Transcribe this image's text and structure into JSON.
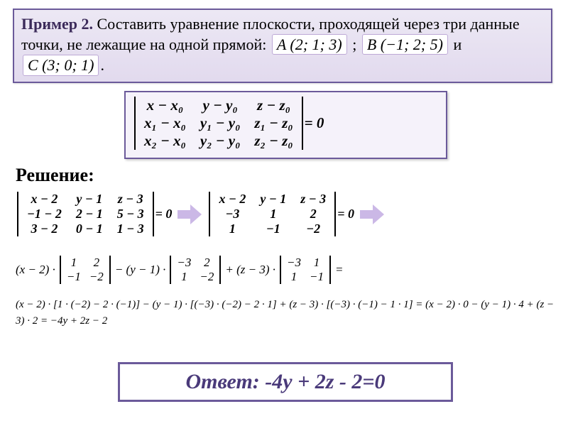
{
  "problem": {
    "prefix_bold": "Пример 2.",
    "text_part1": " Составить уравнение плоскости, проходящей через три данные точки, не лежащие на одной прямой: ",
    "pointA": "A (2; 1; 3)",
    "sep1": ";",
    "pointB": "B (−1; 2; 5)",
    "sep2": "и",
    "pointC": "C (3; 0; 1)",
    "end": "."
  },
  "formula": {
    "r1c1": "x − x₀",
    "r1c2": "y − y₀",
    "r1c3": "z − z₀",
    "r2c1": "x₁ − x₀",
    "r2c2": "y₁ − y₀",
    "r2c3": "z₁ − z₀",
    "r3c1": "x₂ − x₀",
    "r3c2": "y₂ − y₀",
    "r3c3": "z₂ − z₀",
    "rhs": " = 0"
  },
  "solution_label": "Решение:",
  "det1": {
    "r1c1": "x − 2",
    "r1c2": "y − 1",
    "r1c3": "z − 3",
    "r2c1": "−1 − 2",
    "r2c2": "2 − 1",
    "r2c3": "5 − 3",
    "r3c1": "3 − 2",
    "r3c2": "0 − 1",
    "r3c3": "1 − 3",
    "rhs": " = 0"
  },
  "det2": {
    "r1c1": "x − 2",
    "r1c2": "y − 1",
    "r1c3": "z − 3",
    "r2c1": "−3",
    "r2c2": "1",
    "r2c3": "2",
    "r3c1": "1",
    "r3c2": "−1",
    "r3c3": "−2",
    "rhs": " = 0"
  },
  "expansion": {
    "p1": "(x − 2) ·",
    "m1": {
      "a": "1",
      "b": "2",
      "c": "−1",
      "d": "−2"
    },
    "p2": "− (y − 1) ·",
    "m2": {
      "a": "−3",
      "b": "2",
      "c": "1",
      "d": "−2"
    },
    "p3": "+ (z − 3) ·",
    "m3": {
      "a": "−3",
      "b": "1",
      "c": "1",
      "d": "−1"
    },
    "p4": " ="
  },
  "calc": "(x − 2) · [1 · (−2) − 2 · (−1)] − (y − 1) · [(−3) · (−2) − 2 · 1] + (z − 3) · [(−3) · (−1) − 1 · 1] =  (x − 2) · 0 − (y − 1) · 4 + (z − 3) · 2 = −4y + 2z − 2",
  "answer": "Ответ: -4y + 2z - 2=0",
  "colors": {
    "border": "#6b5a9a",
    "box_bg": "#ece8f4",
    "arrow": "#cbb8e6",
    "answer": "#4a3a7a"
  }
}
